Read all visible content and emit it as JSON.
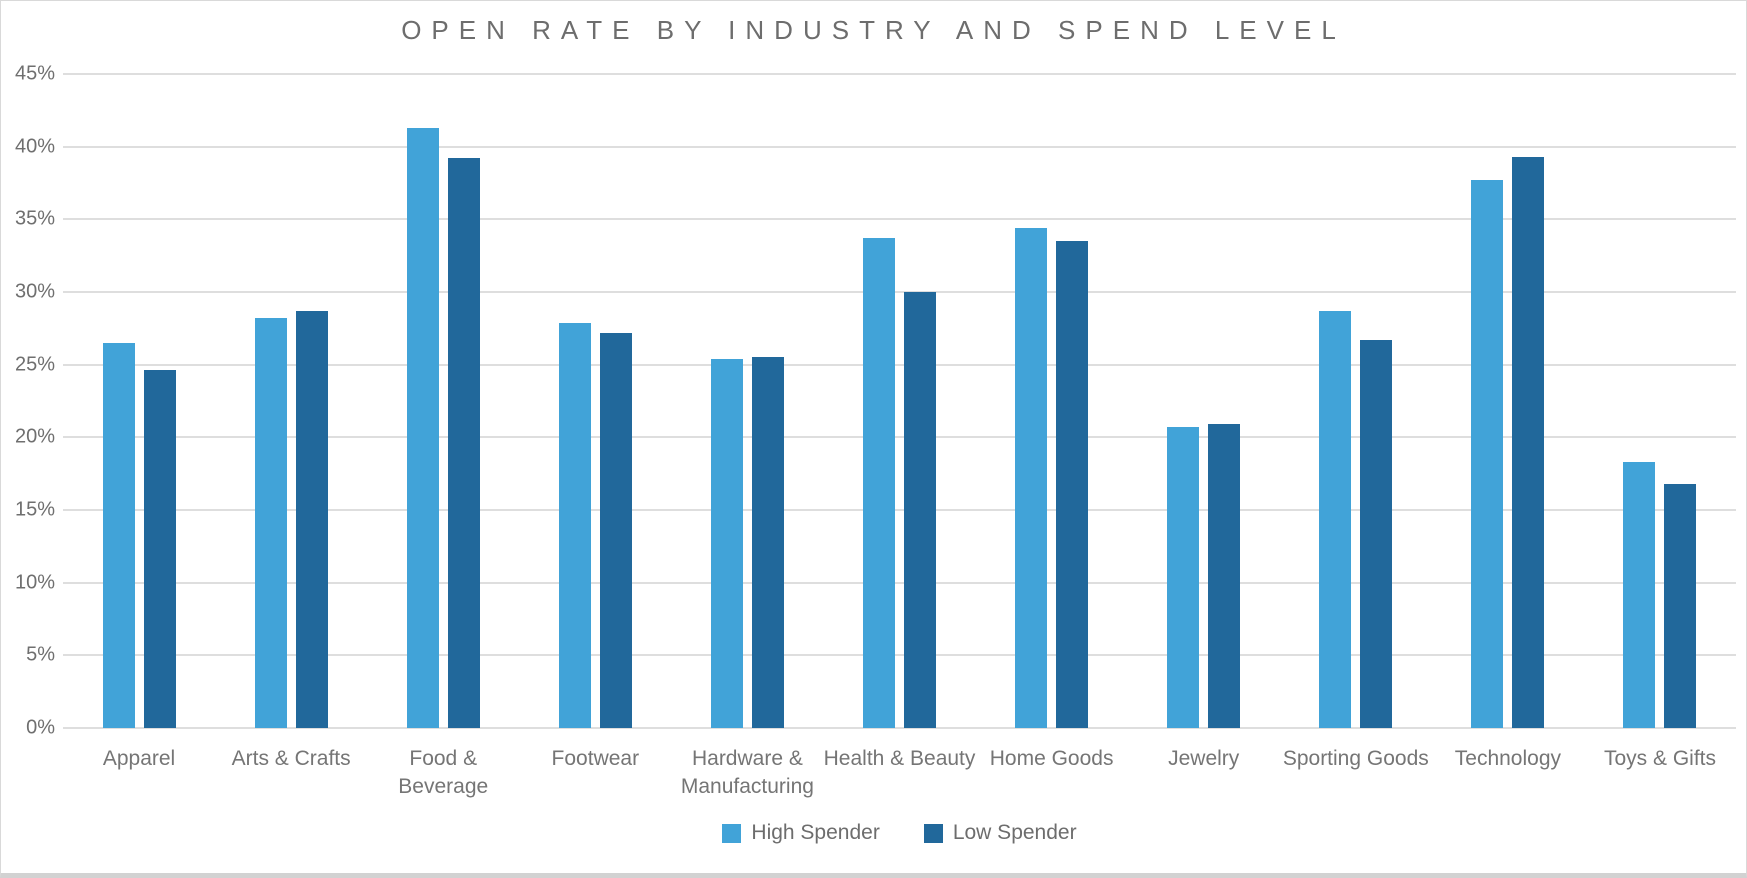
{
  "title": "OPEN RATE BY INDUSTRY AND SPEND LEVEL",
  "colors": {
    "high_spender": "#41A3D8",
    "low_spender": "#21689B",
    "gridline": "#dedede",
    "axis_text": "#6f6f6f",
    "title_text": "#6d6d6d"
  },
  "legend": {
    "high_label": "High Spender",
    "low_label": "Low Spender"
  },
  "chart_data": {
    "type": "bar",
    "title": "OPEN RATE BY INDUSTRY AND SPEND LEVEL",
    "categories": [
      "Apparel",
      "Arts & Crafts",
      "Food & Beverage",
      "Footwear",
      "Hardware & Manufacturing",
      "Health & Beauty",
      "Home Goods",
      "Jewelry",
      "Sporting Goods",
      "Technology",
      "Toys & Gifts"
    ],
    "categories_display": [
      "Apparel",
      "Arts & Crafts",
      "Food &\nBeverage",
      "Footwear",
      "Hardware &\nManufacturing",
      "Health & Beauty",
      "Home Goods",
      "Jewelry",
      "Sporting Goods",
      "Technology",
      "Toys & Gifts"
    ],
    "series": [
      {
        "name": "High Spender",
        "color": "#41A3D8",
        "values": [
          26.5,
          28.2,
          41.3,
          27.9,
          25.4,
          33.7,
          34.4,
          20.7,
          28.7,
          37.7,
          18.3
        ]
      },
      {
        "name": "Low Spender",
        "color": "#21689B",
        "values": [
          24.6,
          28.7,
          39.2,
          27.2,
          25.5,
          30.0,
          33.5,
          20.9,
          26.7,
          39.3,
          16.8
        ]
      }
    ],
    "xlabel": "",
    "ylabel": "",
    "ylim": [
      0,
      45
    ],
    "y_tick_step": 5,
    "y_tick_labels": [
      "0%",
      "5%",
      "10%",
      "15%",
      "20%",
      "25%",
      "30%",
      "35%",
      "40%",
      "45%"
    ],
    "grid": true,
    "legend_position": "bottom"
  }
}
